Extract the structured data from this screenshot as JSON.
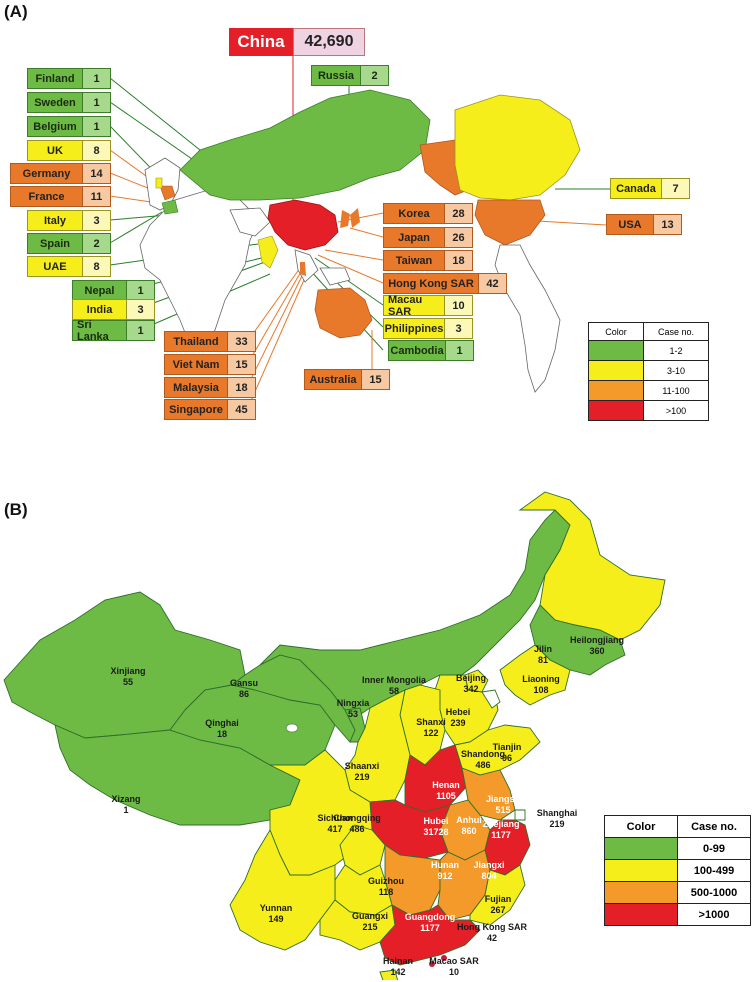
{
  "panel_a": {
    "label": "(A)",
    "china": {
      "name": "China",
      "count": "42,690"
    },
    "countries": [
      {
        "name": "Finland",
        "count": "1",
        "level": "green"
      },
      {
        "name": "Sweden",
        "count": "1",
        "level": "green"
      },
      {
        "name": "Belgium",
        "count": "1",
        "level": "green"
      },
      {
        "name": "UK",
        "count": "8",
        "level": "yellow"
      },
      {
        "name": "Germany",
        "count": "14",
        "level": "orange"
      },
      {
        "name": "France",
        "count": "11",
        "level": "orange"
      },
      {
        "name": "Italy",
        "count": "3",
        "level": "yellow"
      },
      {
        "name": "Spain",
        "count": "2",
        "level": "green"
      },
      {
        "name": "UAE",
        "count": "8",
        "level": "yellow"
      },
      {
        "name": "Nepal",
        "count": "1",
        "level": "green"
      },
      {
        "name": "India",
        "count": "3",
        "level": "yellow"
      },
      {
        "name": "Sri Lanka",
        "count": "1",
        "level": "green"
      },
      {
        "name": "Russia",
        "count": "2",
        "level": "green"
      },
      {
        "name": "Canada",
        "count": "7",
        "level": "yellow"
      },
      {
        "name": "USA",
        "count": "13",
        "level": "orange"
      },
      {
        "name": "Korea",
        "count": "28",
        "level": "orange"
      },
      {
        "name": "Japan",
        "count": "26",
        "level": "orange"
      },
      {
        "name": "Taiwan",
        "count": "18",
        "level": "orange"
      },
      {
        "name": "Hong Kong SAR",
        "count": "42",
        "level": "orange"
      },
      {
        "name": "Macau SAR",
        "count": "10",
        "level": "yellow"
      },
      {
        "name": "Philippines",
        "count": "3",
        "level": "yellow"
      },
      {
        "name": "Cambodia",
        "count": "1",
        "level": "green"
      },
      {
        "name": "Australia",
        "count": "15",
        "level": "orange"
      },
      {
        "name": "Thailand",
        "count": "33",
        "level": "orange"
      },
      {
        "name": "Viet Nam",
        "count": "15",
        "level": "orange"
      },
      {
        "name": "Malaysia",
        "count": "18",
        "level": "orange"
      },
      {
        "name": "Singapore",
        "count": "45",
        "level": "orange"
      }
    ],
    "legend": {
      "header": [
        "Color",
        "Case no."
      ],
      "rows": [
        {
          "range": "1-2",
          "color": "#6dbb45"
        },
        {
          "range": "3-10",
          "color": "#f6ee1a"
        },
        {
          "range": "11-100",
          "color": "#f39a2a"
        },
        {
          "range": ">100",
          "color": "#e41f27"
        }
      ]
    }
  },
  "panel_b": {
    "label": "(B)",
    "provinces": [
      {
        "name": "Xinjiang",
        "count": "55",
        "level": "green"
      },
      {
        "name": "Gansu",
        "count": "86",
        "level": "green"
      },
      {
        "name": "Qinghai",
        "count": "18",
        "level": "green"
      },
      {
        "name": "Xizang",
        "count": "1",
        "level": "green"
      },
      {
        "name": "Inner Mongolia",
        "count": "58",
        "level": "green"
      },
      {
        "name": "Ningxia",
        "count": "53",
        "level": "green"
      },
      {
        "name": "Heilongjiang",
        "count": "360",
        "level": "yellow"
      },
      {
        "name": "Jilin",
        "count": "81",
        "level": "green"
      },
      {
        "name": "Liaoning",
        "count": "108",
        "level": "yellow"
      },
      {
        "name": "Beijing",
        "count": "342",
        "level": "yellow"
      },
      {
        "name": "Hebei",
        "count": "239",
        "level": "yellow"
      },
      {
        "name": "Tianjin",
        "count": "96",
        "level": "white"
      },
      {
        "name": "Shanxi",
        "count": "122",
        "level": "yellow"
      },
      {
        "name": "Shandong",
        "count": "486",
        "level": "yellow"
      },
      {
        "name": "Shaanxi",
        "count": "219",
        "level": "yellow"
      },
      {
        "name": "Henan",
        "count": "1105",
        "level": "red"
      },
      {
        "name": "Jiangsu",
        "count": "515",
        "level": "orange"
      },
      {
        "name": "Shanghai",
        "count": "219",
        "level": "white"
      },
      {
        "name": "Sichuan",
        "count": "417",
        "level": "yellow"
      },
      {
        "name": "Chongqing",
        "count": "486",
        "level": "yellow"
      },
      {
        "name": "Hubei",
        "count": "31728",
        "level": "red"
      },
      {
        "name": "Anhui",
        "count": "860",
        "level": "orange"
      },
      {
        "name": "Zhejiang",
        "count": "1177",
        "level": "red"
      },
      {
        "name": "Hunan",
        "count": "912",
        "level": "orange"
      },
      {
        "name": "Jiangxi",
        "count": "804",
        "level": "orange"
      },
      {
        "name": "Guizhou",
        "count": "118",
        "level": "yellow"
      },
      {
        "name": "Fujian",
        "count": "267",
        "level": "yellow"
      },
      {
        "name": "Yunnan",
        "count": "149",
        "level": "yellow"
      },
      {
        "name": "Guangxi",
        "count": "215",
        "level": "yellow"
      },
      {
        "name": "Guangdong",
        "count": "1177",
        "level": "red"
      },
      {
        "name": "Hong Kong SAR",
        "count": "42",
        "level": "white"
      },
      {
        "name": "Hainan",
        "count": "142",
        "level": "yellow"
      },
      {
        "name": "Macao SAR",
        "count": "10",
        "level": "white"
      }
    ],
    "legend": {
      "header": [
        "Color",
        "Case no."
      ],
      "rows": [
        {
          "range": "0-99",
          "color": "#6dbb45"
        },
        {
          "range": "100-499",
          "color": "#f6ee1a"
        },
        {
          "range": "500-1000",
          "color": "#f39a2a"
        },
        {
          "range": ">1000",
          "color": "#e41f27"
        }
      ]
    }
  },
  "colors": {
    "green": "#6dbb45",
    "yellow": "#f6ee1a",
    "orange": "#f39a2a",
    "red": "#e41f27"
  }
}
